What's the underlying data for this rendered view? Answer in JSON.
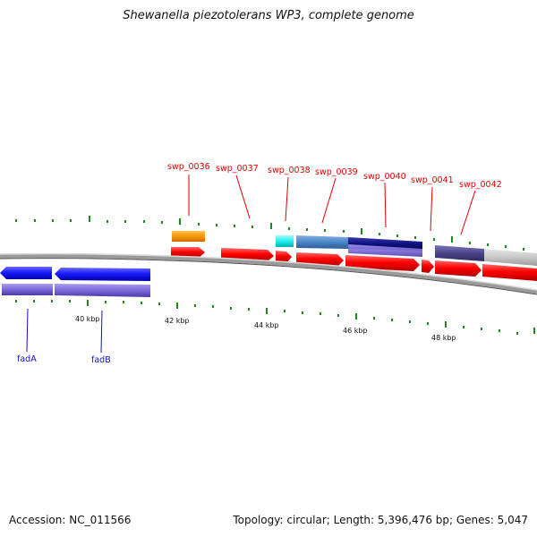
{
  "title": "Shewanella piezotolerans WP3, complete genome",
  "footer": {
    "accession": "Accession: NC_011566",
    "summary": "Topology: circular; Length: 5,396,476 bp; Genes: 5,047"
  },
  "scale_labels": [
    "40 kbp",
    "42 kbp",
    "44 kbp",
    "46 kbp",
    "48 kbp"
  ],
  "genes_top": [
    {
      "id": "swp_0036",
      "label": "swp_0036"
    },
    {
      "id": "swp_0037",
      "label": "swp_0037"
    },
    {
      "id": "swp_0038",
      "label": "swp_0038"
    },
    {
      "id": "swp_0039",
      "label": "swp_0039"
    },
    {
      "id": "swp_0040",
      "label": "swp_0040"
    },
    {
      "id": "swp_0041",
      "label": "swp_0041"
    },
    {
      "id": "swp_0042",
      "label": "swp_0042"
    }
  ],
  "genes_bottom": [
    {
      "id": "fadA",
      "label": "fadA"
    },
    {
      "id": "fadB",
      "label": "fadB"
    }
  ],
  "colors": {
    "gene_label_top": "#e00000",
    "gene_label_bottom": "#1010c0",
    "cds_red": "#ff0000",
    "cds_blue": "#1a1aff",
    "orange": "#ff9900",
    "cyan": "#22eeee",
    "steel": "#4a86c8",
    "navy": "#101080",
    "purple": "#6a5acd",
    "lightgray": "#c8c8c8",
    "backbone": "#777777",
    "tick_green": "#1a8a1a"
  }
}
